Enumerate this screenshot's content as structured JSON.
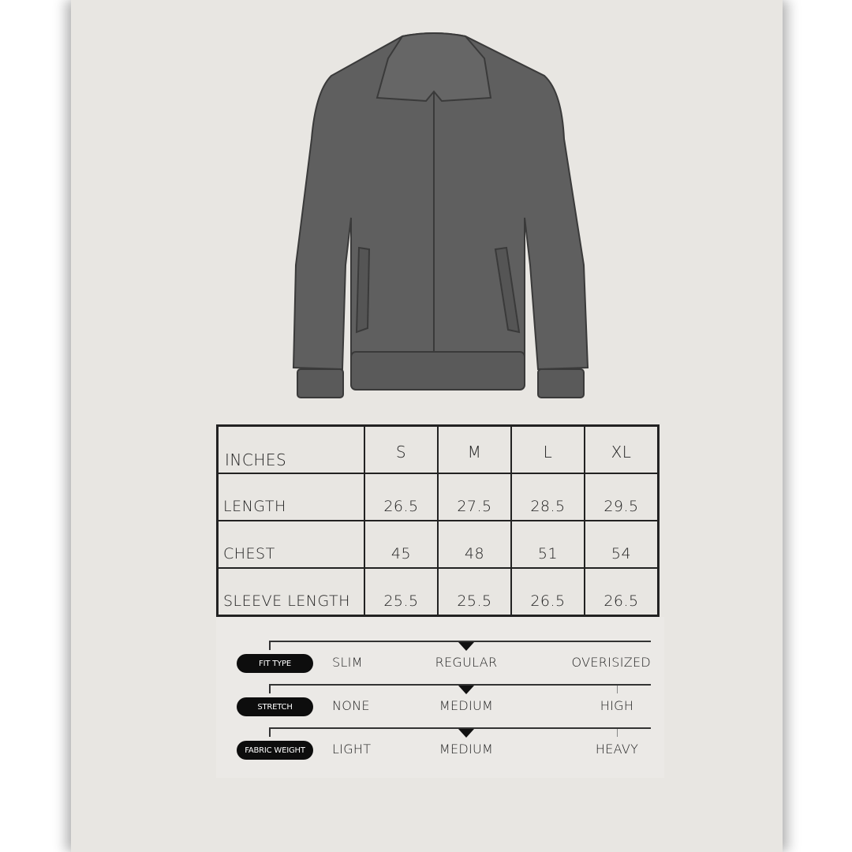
{
  "table": {
    "header": [
      "INCHES",
      "S",
      "M",
      "L",
      "XL"
    ],
    "rows": [
      {
        "label": "LENGTH",
        "values": [
          "26.5",
          "27.5",
          "28.5",
          "29.5"
        ]
      },
      {
        "label": "CHEST",
        "values": [
          "45",
          "48",
          "51",
          "54"
        ]
      },
      {
        "label": "SLEEVE LENGTH",
        "values": [
          "25.5",
          "25.5",
          "26.5",
          "26.5"
        ]
      }
    ]
  },
  "scales": [
    {
      "label": "FIT TYPE",
      "options": [
        "SLIM",
        "REGULAR",
        "OVERISIZED"
      ],
      "selected_index": 1
    },
    {
      "label": "STRETCH",
      "options": [
        "NONE",
        "MEDIUM",
        "HIGH"
      ],
      "selected_index": 1
    },
    {
      "label": "FABRIC WEIGHT",
      "options": [
        "LIGHT",
        "MEDIUM",
        "HEAVY"
      ],
      "selected_index": 1
    }
  ],
  "colors": {
    "background": "#e8e6e2",
    "jacket": "#5f5f5f",
    "ink": "#111111"
  }
}
